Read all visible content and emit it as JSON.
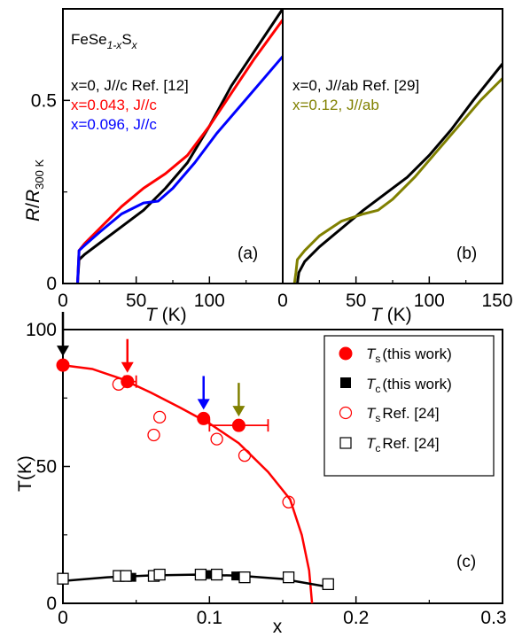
{
  "chart_data": [
    {
      "panel": "(a)",
      "type": "line",
      "xlabel": "T (K)",
      "ylabel": "R/R300 K",
      "xlim": [
        0,
        150
      ],
      "ylim": [
        0,
        0.75
      ],
      "x_ticks": [
        "0",
        "50",
        "100"
      ],
      "y_ticks": [
        "0",
        "0.5"
      ],
      "material": "FeSe1-xSx",
      "series": [
        {
          "name": "x=0, J//c  Ref. [12]",
          "color": "#000000",
          "points": [
            [
              10,
              0
            ],
            [
              11,
              0.065
            ],
            [
              15,
              0.08
            ],
            [
              25,
              0.11
            ],
            [
              40,
              0.155
            ],
            [
              55,
              0.2
            ],
            [
              70,
              0.26
            ],
            [
              85,
              0.33
            ],
            [
              100,
              0.43
            ],
            [
              115,
              0.54
            ],
            [
              130,
              0.63
            ],
            [
              150,
              0.75
            ]
          ]
        },
        {
          "name": "x=0.043, J//c",
          "color": "#ff0000",
          "points": [
            [
              10,
              0
            ],
            [
              11,
              0.09
            ],
            [
              15,
              0.11
            ],
            [
              25,
              0.15
            ],
            [
              40,
              0.21
            ],
            [
              55,
              0.26
            ],
            [
              70,
              0.3
            ],
            [
              85,
              0.35
            ],
            [
              100,
              0.43
            ],
            [
              115,
              0.52
            ],
            [
              130,
              0.61
            ],
            [
              150,
              0.72
            ]
          ]
        },
        {
          "name": "x=0.096, J//c",
          "color": "#0000ff",
          "points": [
            [
              10,
              0
            ],
            [
              11,
              0.09
            ],
            [
              15,
              0.105
            ],
            [
              25,
              0.14
            ],
            [
              40,
              0.19
            ],
            [
              55,
              0.22
            ],
            [
              65,
              0.225
            ],
            [
              75,
              0.26
            ],
            [
              90,
              0.33
            ],
            [
              105,
              0.41
            ],
            [
              120,
              0.48
            ],
            [
              135,
              0.55
            ],
            [
              150,
              0.62
            ]
          ]
        }
      ]
    },
    {
      "panel": "(b)",
      "type": "line",
      "xlabel": "T (K)",
      "xlim": [
        0,
        150
      ],
      "ylim": [
        0,
        0.75
      ],
      "x_ticks": [
        "0",
        "50",
        "100",
        "150"
      ],
      "series": [
        {
          "name": "x=0, J//ab  Ref. [29]",
          "color": "#000000",
          "points": [
            [
              10,
              0
            ],
            [
              11,
              0.03
            ],
            [
              15,
              0.06
            ],
            [
              25,
              0.1
            ],
            [
              40,
              0.15
            ],
            [
              55,
              0.2
            ],
            [
              70,
              0.245
            ],
            [
              85,
              0.29
            ],
            [
              100,
              0.35
            ],
            [
              115,
              0.42
            ],
            [
              130,
              0.5
            ],
            [
              150,
              0.6
            ]
          ]
        },
        {
          "name": "x=0.12, J//ab",
          "color": "#808000",
          "points": [
            [
              8,
              0
            ],
            [
              9,
              0.03
            ],
            [
              10,
              0.065
            ],
            [
              15,
              0.09
            ],
            [
              25,
              0.13
            ],
            [
              40,
              0.17
            ],
            [
              55,
              0.19
            ],
            [
              65,
              0.2
            ],
            [
              75,
              0.23
            ],
            [
              90,
              0.29
            ],
            [
              105,
              0.36
            ],
            [
              120,
              0.43
            ],
            [
              135,
              0.5
            ],
            [
              150,
              0.56
            ]
          ]
        }
      ]
    },
    {
      "panel": "(c)",
      "type": "scatter",
      "xlabel": "x",
      "ylabel": "T(K)",
      "xlim": [
        0,
        0.3
      ],
      "ylim": [
        0,
        100
      ],
      "x_ticks": [
        "0",
        "0.1",
        "0.2",
        "0.3"
      ],
      "y_ticks": [
        "0",
        "50",
        "100"
      ],
      "legend": [
        "Ts (this work)",
        "Tc (this work)",
        "Ts Ref. [24]",
        "Tc Ref. [24]"
      ],
      "series": [
        {
          "name": "Ts (this work)",
          "marker": "filled-circle",
          "color": "#ff0000",
          "points": [
            [
              0,
              87
            ],
            [
              0.044,
              81
            ],
            [
              0.096,
              67.5
            ],
            [
              0.12,
              65
            ]
          ],
          "xerr": [
            [
              0.044,
              0.042,
              0.05
            ],
            [
              0.12,
              0.1,
              0.14
            ]
          ]
        },
        {
          "name": "Tc (this work)",
          "marker": "filled-square",
          "color": "#000000",
          "points": [
            [
              0.043,
              9.5
            ],
            [
              0.047,
              9.5
            ],
            [
              0.094,
              10.5
            ],
            [
              0.098,
              10.5
            ],
            [
              0.118,
              10
            ],
            [
              0.122,
              10
            ]
          ]
        },
        {
          "name": "Ts Ref. [24]",
          "marker": "open-circle",
          "color": "#ff0000",
          "points": [
            [
              0.038,
              80
            ],
            [
              0.062,
              61.5
            ],
            [
              0.066,
              68
            ],
            [
              0.105,
              60
            ],
            [
              0.124,
              54
            ],
            [
              0.154,
              37
            ]
          ]
        },
        {
          "name": "Tc Ref. [24]",
          "marker": "open-square",
          "color": "#000000",
          "points": [
            [
              0,
              9
            ],
            [
              0.038,
              10
            ],
            [
              0.043,
              10
            ],
            [
              0.062,
              10
            ],
            [
              0.066,
              10.5
            ],
            [
              0.094,
              10.5
            ],
            [
              0.105,
              10.5
            ],
            [
              0.124,
              9.5
            ],
            [
              0.154,
              9.5
            ],
            [
              0.181,
              7
            ]
          ]
        }
      ],
      "lines": [
        {
          "color": "#ff0000",
          "points": [
            [
              0,
              87
            ],
            [
              0.02,
              85.6
            ],
            [
              0.04,
              82
            ],
            [
              0.06,
              77
            ],
            [
              0.08,
              71.5
            ],
            [
              0.1,
              65.7
            ],
            [
              0.12,
              58.5
            ],
            [
              0.14,
              48
            ],
            [
              0.155,
              38
            ],
            [
              0.163,
              25
            ],
            [
              0.168,
              12
            ],
            [
              0.17,
              0
            ]
          ]
        },
        {
          "color": "#000000",
          "points": [
            [
              0,
              8.2
            ],
            [
              0.03,
              9.5
            ],
            [
              0.06,
              10.2
            ],
            [
              0.09,
              10.5
            ],
            [
              0.12,
              10.1
            ],
            [
              0.15,
              8.9
            ],
            [
              0.181,
              6
            ]
          ]
        }
      ],
      "arrows": [
        {
          "x": 0,
          "color": "#000000"
        },
        {
          "x": 0.044,
          "color": "#ff0000"
        },
        {
          "x": 0.096,
          "color": "#0000ff"
        },
        {
          "x": 0.12,
          "color": "#808000"
        }
      ]
    }
  ],
  "labels": {
    "panel_a_tag": "(a)",
    "panel_b_tag": "(b)",
    "panel_c_tag": "(c)",
    "formula_base": "FeSe",
    "formula_sub": "1-x",
    "formula_s": "S",
    "formula_sub2": "x",
    "a_line1": "x=0, J//c  Ref. [12]",
    "a_line2": "x=0.043, J//c",
    "a_line3": "x=0.096, J//c",
    "b_line1": "x=0, J//ab  Ref. [29]",
    "b_line2": "x=0.12, J//ab",
    "ylabel_a_R": "R",
    "ylabel_a_slash": "/",
    "ylabel_a_R2": "R",
    "ylabel_a_sub": "300 K",
    "xlabel_T": "T",
    "xlabel_unit": " (K)",
    "c_ylabel": "T(K)",
    "c_xlabel": "x",
    "legend_Ts": "T",
    "legend_s": "s",
    "legend_Tc": "T",
    "legend_c": "c",
    "legend1": "(this work)",
    "legend2": "(this work)",
    "legend3": "Ref. [24]",
    "legend4": "Ref. [24]",
    "colors": {
      "black": "#000000",
      "red": "#ff0000",
      "blue": "#0000ff",
      "olive": "#808000"
    }
  }
}
